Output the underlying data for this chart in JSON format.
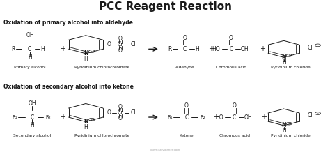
{
  "title": "PCC Reagent Reaction",
  "title_fontsize": 11,
  "background_color": "#ffffff",
  "text_color": "#1a1a1a",
  "section1_label": "Oxidation of primary alcohol into aldehyde",
  "section2_label": "Oxidation of secondary alcohol into ketone",
  "section_label_fontsize": 5.5,
  "compound_label_fontsize": 4.2,
  "structure_fontsize": 5.5,
  "watermark": "chemistryleaner.com"
}
